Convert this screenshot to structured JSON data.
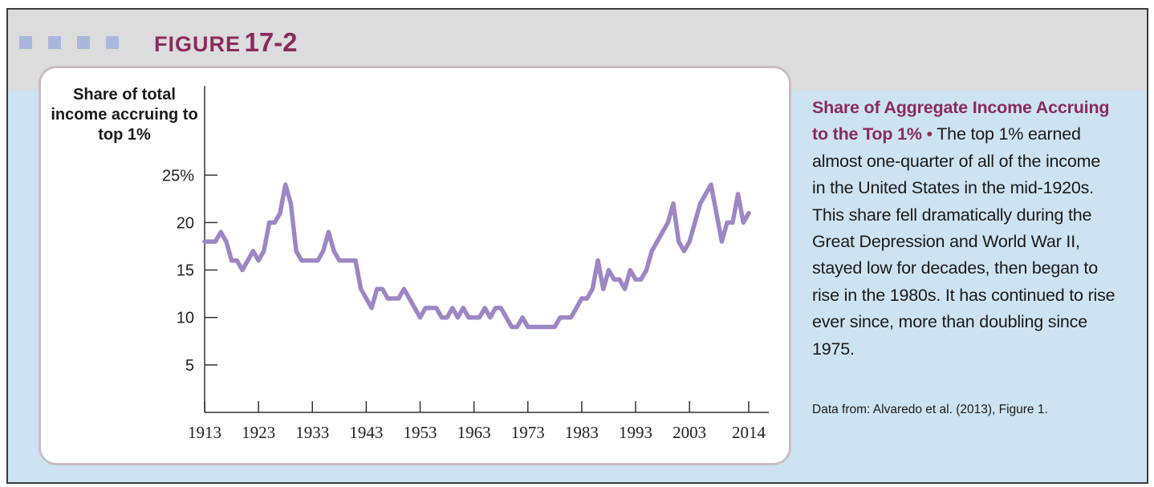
{
  "figure": {
    "label_word": "FIGURE",
    "label_number": "17-2",
    "caption_title": "Share of Aggregate Income Accruing to the Top 1%",
    "caption_bullet": "•",
    "caption_body": "The top 1% earned almost one-quarter of all of the income in the United States in the mid-1920s. This share fell dramatically during the Great Depression and World War II, stayed low for decades, then began to rise in the 1980s. It has continued to rise ever since, more than doubling since 1975.",
    "source": "Data from: Alvaredo et al. (2013), Figure 1."
  },
  "chart_data": {
    "type": "line",
    "ylabel": "Share of total income accruing to top 1%",
    "xlabel": "",
    "xlim": [
      1913,
      2014
    ],
    "ylim": [
      0,
      25
    ],
    "x_ticks": [
      1913,
      1923,
      1933,
      1943,
      1953,
      1963,
      1973,
      1983,
      1993,
      2003,
      2014
    ],
    "y_ticks": [
      {
        "value": 25,
        "label": "25%"
      },
      {
        "value": 20,
        "label": "20"
      },
      {
        "value": 15,
        "label": "15"
      },
      {
        "value": 10,
        "label": "10"
      },
      {
        "value": 5,
        "label": "5"
      }
    ],
    "grid": false,
    "series": [
      {
        "color": "#9d86c4",
        "points": [
          [
            1913,
            18
          ],
          [
            1914,
            18
          ],
          [
            1915,
            18
          ],
          [
            1916,
            19
          ],
          [
            1917,
            18
          ],
          [
            1918,
            16
          ],
          [
            1919,
            16
          ],
          [
            1920,
            15
          ],
          [
            1921,
            16
          ],
          [
            1922,
            17
          ],
          [
            1923,
            16
          ],
          [
            1924,
            17
          ],
          [
            1925,
            20
          ],
          [
            1926,
            20
          ],
          [
            1927,
            21
          ],
          [
            1928,
            24
          ],
          [
            1929,
            22
          ],
          [
            1930,
            17
          ],
          [
            1931,
            16
          ],
          [
            1932,
            16
          ],
          [
            1933,
            16
          ],
          [
            1934,
            16
          ],
          [
            1935,
            17
          ],
          [
            1936,
            19
          ],
          [
            1937,
            17
          ],
          [
            1938,
            16
          ],
          [
            1939,
            16
          ],
          [
            1940,
            16
          ],
          [
            1941,
            16
          ],
          [
            1942,
            13
          ],
          [
            1943,
            12
          ],
          [
            1944,
            11
          ],
          [
            1945,
            13
          ],
          [
            1946,
            13
          ],
          [
            1947,
            12
          ],
          [
            1948,
            12
          ],
          [
            1949,
            12
          ],
          [
            1950,
            13
          ],
          [
            1951,
            12
          ],
          [
            1952,
            11
          ],
          [
            1953,
            10
          ],
          [
            1954,
            11
          ],
          [
            1955,
            11
          ],
          [
            1956,
            11
          ],
          [
            1957,
            10
          ],
          [
            1958,
            10
          ],
          [
            1959,
            11
          ],
          [
            1960,
            10
          ],
          [
            1961,
            11
          ],
          [
            1962,
            10
          ],
          [
            1963,
            10
          ],
          [
            1964,
            10
          ],
          [
            1965,
            11
          ],
          [
            1966,
            10
          ],
          [
            1967,
            11
          ],
          [
            1968,
            11
          ],
          [
            1969,
            10
          ],
          [
            1970,
            9
          ],
          [
            1971,
            9
          ],
          [
            1972,
            10
          ],
          [
            1973,
            9
          ],
          [
            1974,
            9
          ],
          [
            1975,
            9
          ],
          [
            1976,
            9
          ],
          [
            1977,
            9
          ],
          [
            1978,
            9
          ],
          [
            1979,
            10
          ],
          [
            1980,
            10
          ],
          [
            1981,
            10
          ],
          [
            1982,
            11
          ],
          [
            1983,
            12
          ],
          [
            1984,
            12
          ],
          [
            1985,
            13
          ],
          [
            1986,
            16
          ],
          [
            1987,
            13
          ],
          [
            1988,
            15
          ],
          [
            1989,
            14
          ],
          [
            1990,
            14
          ],
          [
            1991,
            13
          ],
          [
            1992,
            15
          ],
          [
            1993,
            14
          ],
          [
            1994,
            14
          ],
          [
            1995,
            15
          ],
          [
            1996,
            17
          ],
          [
            1997,
            18
          ],
          [
            1998,
            19
          ],
          [
            1999,
            20
          ],
          [
            2000,
            22
          ],
          [
            2001,
            18
          ],
          [
            2002,
            17
          ],
          [
            2003,
            18
          ],
          [
            2004,
            20
          ],
          [
            2005,
            22
          ],
          [
            2006,
            23
          ],
          [
            2007,
            24
          ],
          [
            2008,
            21
          ],
          [
            2009,
            18
          ],
          [
            2010,
            20
          ],
          [
            2011,
            20
          ],
          [
            2012,
            23
          ],
          [
            2013,
            20
          ],
          [
            2014,
            21
          ]
        ]
      }
    ]
  }
}
